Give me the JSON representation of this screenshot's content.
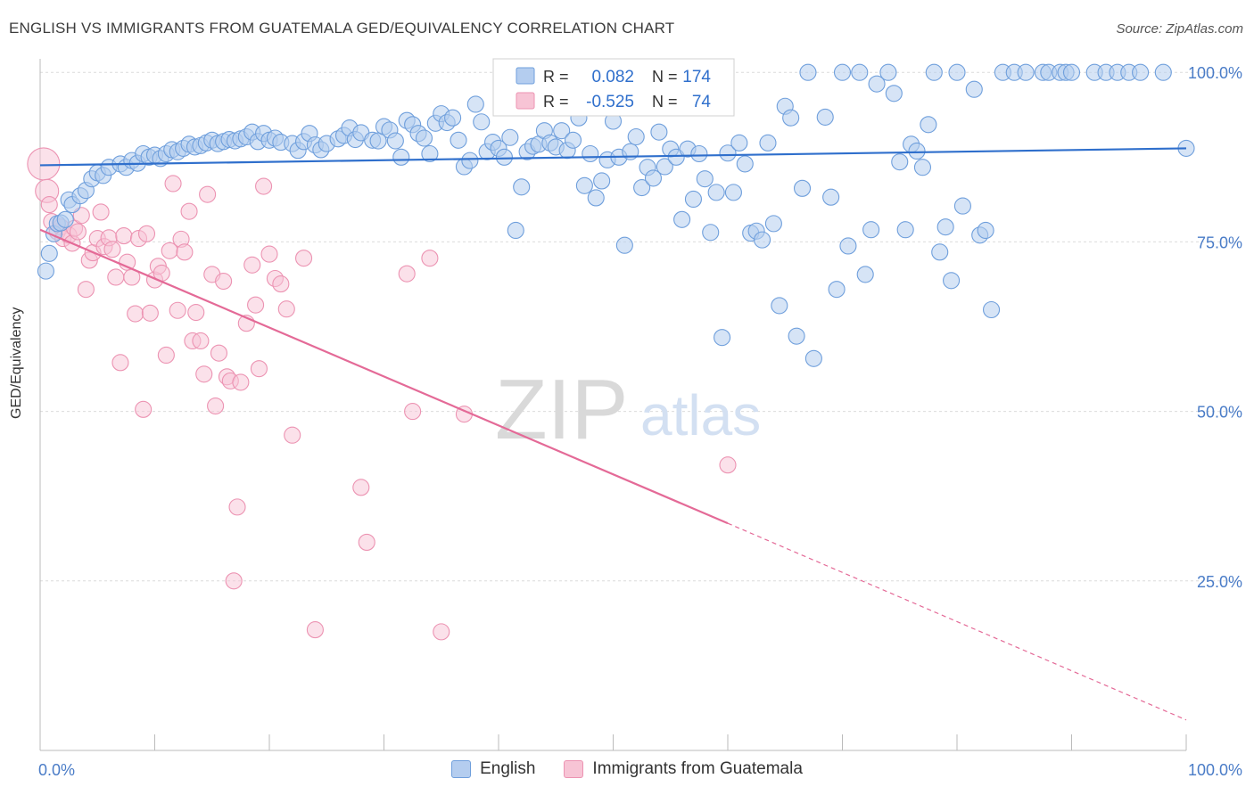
{
  "header": {
    "title": "ENGLISH VS IMMIGRANTS FROM GUATEMALA GED/EQUIVALENCY CORRELATION CHART",
    "source": "Source: ZipAtlas.com"
  },
  "colors": {
    "english": "#6f9fdc",
    "english_fill": "#b4cdef",
    "english_line": "#2f6fcc",
    "guatemala": "#ec93b2",
    "guatemala_fill": "#f7c4d5",
    "guatemala_line": "#e46a97",
    "axis_label": "#4a7cc7",
    "grid": "#dcdcdc"
  },
  "stats": {
    "english": {
      "r_label": "R =",
      "r_value": "0.082",
      "n_label": "N =",
      "n_value": "174"
    },
    "guatemala": {
      "r_label": "R =",
      "r_value": "-0.525",
      "n_label": "N =",
      "n_value": "74"
    }
  },
  "watermark": {
    "zip": "ZIP",
    "atlas": "atlas"
  },
  "chart_data": {
    "type": "scatter",
    "title": "ENGLISH VS IMMIGRANTS FROM GUATEMALA GED/EQUIVALENCY CORRELATION CHART",
    "xlabel": "",
    "ylabel": "GED/Equivalency",
    "xlim": [
      0,
      100
    ],
    "ylim": [
      0,
      102
    ],
    "x_tick_labels": [
      "0.0%",
      "100.0%"
    ],
    "y_ticks": [
      25,
      50,
      75,
      100
    ],
    "y_tick_labels": [
      "25.0%",
      "50.0%",
      "75.0%",
      "100.0%"
    ],
    "grid": true,
    "legend_position": "bottom",
    "series": [
      {
        "name": "English",
        "trend": {
          "x": [
            0,
            100
          ],
          "y": [
            86.3,
            88.8
          ]
        },
        "points": [
          [
            0.5,
            70.7
          ],
          [
            0.8,
            73.3
          ],
          [
            1.2,
            76.2
          ],
          [
            1.5,
            77.7
          ],
          [
            1.8,
            77.8
          ],
          [
            2.2,
            78.3
          ],
          [
            2.5,
            81.2
          ],
          [
            2.8,
            80.5
          ],
          [
            3.5,
            81.8
          ],
          [
            4.0,
            82.6
          ],
          [
            4.5,
            84.3
          ],
          [
            5.0,
            85.2
          ],
          [
            5.5,
            84.8
          ],
          [
            6.0,
            86.0
          ],
          [
            7.0,
            86.5
          ],
          [
            7.5,
            86.0
          ],
          [
            8.0,
            87.0
          ],
          [
            8.5,
            86.6
          ],
          [
            9.0,
            88.0
          ],
          [
            9.5,
            87.5
          ],
          [
            10.0,
            87.8
          ],
          [
            10.5,
            87.3
          ],
          [
            11.0,
            88.0
          ],
          [
            11.5,
            88.6
          ],
          [
            12.0,
            88.3
          ],
          [
            12.5,
            88.8
          ],
          [
            13.0,
            89.4
          ],
          [
            13.5,
            89.0
          ],
          [
            14.0,
            89.2
          ],
          [
            14.5,
            89.6
          ],
          [
            15.0,
            90.0
          ],
          [
            15.5,
            89.5
          ],
          [
            16.0,
            89.8
          ],
          [
            16.5,
            90.1
          ],
          [
            17.0,
            89.9
          ],
          [
            17.5,
            90.2
          ],
          [
            18.0,
            90.5
          ],
          [
            18.5,
            91.2
          ],
          [
            19.0,
            89.8
          ],
          [
            19.5,
            91.0
          ],
          [
            20.0,
            90.0
          ],
          [
            20.5,
            90.3
          ],
          [
            21.0,
            89.7
          ],
          [
            22.0,
            89.5
          ],
          [
            22.5,
            88.5
          ],
          [
            23.0,
            89.8
          ],
          [
            23.5,
            91.0
          ],
          [
            24.0,
            89.3
          ],
          [
            24.5,
            88.6
          ],
          [
            25.0,
            89.5
          ],
          [
            26.0,
            90.2
          ],
          [
            26.5,
            90.7
          ],
          [
            27.0,
            91.8
          ],
          [
            27.5,
            90.1
          ],
          [
            28.0,
            91.1
          ],
          [
            29.0,
            90.0
          ],
          [
            29.5,
            89.9
          ],
          [
            30.0,
            92.0
          ],
          [
            30.5,
            91.5
          ],
          [
            31.0,
            89.9
          ],
          [
            31.5,
            87.5
          ],
          [
            32.0,
            92.9
          ],
          [
            32.5,
            92.3
          ],
          [
            33.0,
            91.0
          ],
          [
            33.5,
            90.3
          ],
          [
            34.0,
            88.0
          ],
          [
            34.5,
            92.5
          ],
          [
            35.0,
            93.9
          ],
          [
            35.5,
            92.6
          ],
          [
            36.0,
            93.3
          ],
          [
            36.5,
            90.0
          ],
          [
            37.0,
            86.1
          ],
          [
            37.5,
            87.0
          ],
          [
            38.0,
            95.3
          ],
          [
            38.5,
            92.7
          ],
          [
            39.0,
            88.3
          ],
          [
            39.5,
            89.7
          ],
          [
            40.0,
            88.8
          ],
          [
            40.5,
            87.5
          ],
          [
            41.0,
            90.4
          ],
          [
            41.5,
            76.7
          ],
          [
            42.0,
            83.1
          ],
          [
            42.5,
            88.3
          ],
          [
            43.0,
            89.1
          ],
          [
            43.5,
            89.4
          ],
          [
            44.0,
            91.4
          ],
          [
            44.5,
            89.6
          ],
          [
            45.0,
            89.0
          ],
          [
            45.5,
            91.4
          ],
          [
            46.0,
            88.5
          ],
          [
            46.5,
            90.0
          ],
          [
            47.0,
            93.3
          ],
          [
            47.5,
            83.3
          ],
          [
            48.0,
            88.0
          ],
          [
            48.5,
            81.5
          ],
          [
            49.0,
            84.0
          ],
          [
            49.5,
            87.1
          ],
          [
            50.0,
            92.8
          ],
          [
            50.5,
            87.5
          ],
          [
            51.0,
            74.5
          ],
          [
            51.5,
            88.3
          ],
          [
            52.0,
            90.5
          ],
          [
            52.5,
            83.0
          ],
          [
            53.0,
            86.0
          ],
          [
            53.5,
            84.4
          ],
          [
            54.0,
            91.2
          ],
          [
            54.5,
            86.1
          ],
          [
            55.0,
            88.7
          ],
          [
            55.5,
            87.5
          ],
          [
            56.0,
            78.3
          ],
          [
            56.5,
            88.7
          ],
          [
            57.0,
            81.3
          ],
          [
            57.5,
            88.0
          ],
          [
            58.0,
            84.3
          ],
          [
            58.5,
            76.4
          ],
          [
            59.0,
            82.3
          ],
          [
            59.5,
            60.9
          ],
          [
            60.0,
            88.1
          ],
          [
            60.5,
            82.3
          ],
          [
            61.0,
            89.6
          ],
          [
            61.5,
            86.5
          ],
          [
            62.0,
            76.3
          ],
          [
            62.5,
            76.6
          ],
          [
            63.0,
            75.3
          ],
          [
            63.5,
            89.6
          ],
          [
            64.0,
            77.7
          ],
          [
            64.5,
            65.6
          ],
          [
            65.0,
            95.0
          ],
          [
            65.5,
            93.3
          ],
          [
            66.0,
            61.1
          ],
          [
            66.5,
            82.9
          ],
          [
            67.0,
            100.0
          ],
          [
            67.5,
            57.8
          ],
          [
            68.5,
            93.4
          ],
          [
            69.0,
            81.6
          ],
          [
            69.5,
            68.0
          ],
          [
            70.0,
            100.0
          ],
          [
            70.5,
            74.4
          ],
          [
            71.5,
            100.0
          ],
          [
            72.0,
            70.2
          ],
          [
            72.5,
            76.8
          ],
          [
            73.0,
            98.3
          ],
          [
            74.0,
            100.0
          ],
          [
            74.5,
            96.9
          ],
          [
            75.0,
            86.8
          ],
          [
            75.5,
            76.8
          ],
          [
            76.0,
            89.4
          ],
          [
            76.5,
            88.4
          ],
          [
            77.0,
            86.0
          ],
          [
            77.5,
            92.3
          ],
          [
            78.0,
            100.0
          ],
          [
            78.5,
            73.5
          ],
          [
            79.0,
            77.2
          ],
          [
            79.5,
            69.3
          ],
          [
            80.0,
            100.0
          ],
          [
            80.5,
            80.3
          ],
          [
            81.5,
            97.5
          ],
          [
            82.0,
            76.0
          ],
          [
            82.5,
            76.7
          ],
          [
            83.0,
            65.0
          ],
          [
            84.0,
            100.0
          ],
          [
            85.0,
            100.0
          ],
          [
            86.0,
            100.0
          ],
          [
            87.5,
            100.0
          ],
          [
            88.0,
            100.0
          ],
          [
            89.0,
            100.0
          ],
          [
            89.5,
            100.0
          ],
          [
            90.0,
            100.0
          ],
          [
            92.0,
            100.0
          ],
          [
            93.0,
            100.0
          ],
          [
            94.0,
            100.0
          ],
          [
            95.0,
            100.0
          ],
          [
            96.0,
            100.0
          ],
          [
            98.0,
            100.0
          ],
          [
            100.0,
            88.8
          ]
        ]
      },
      {
        "name": "Immigrants from Guatemala",
        "trend": {
          "x": [
            0,
            60
          ],
          "y": [
            76.8,
            33.5
          ]
        },
        "trend_dashed": {
          "x": [
            60,
            100
          ],
          "y": [
            33.5,
            4.5
          ]
        },
        "points": [
          [
            0.3,
            86.5
          ],
          [
            0.6,
            82.5
          ],
          [
            0.8,
            80.5
          ],
          [
            1.0,
            78.0
          ],
          [
            1.5,
            76.5
          ],
          [
            1.8,
            77.2
          ],
          [
            2.0,
            75.5
          ],
          [
            2.5,
            76.0
          ],
          [
            2.8,
            74.8
          ],
          [
            3.0,
            77.0
          ],
          [
            3.3,
            76.5
          ],
          [
            3.6,
            78.9
          ],
          [
            4.0,
            68.0
          ],
          [
            4.3,
            72.3
          ],
          [
            4.6,
            73.4
          ],
          [
            5.0,
            75.5
          ],
          [
            5.3,
            79.4
          ],
          [
            5.6,
            74.3
          ],
          [
            6.0,
            75.6
          ],
          [
            6.3,
            73.9
          ],
          [
            6.6,
            69.8
          ],
          [
            7.0,
            57.2
          ],
          [
            7.3,
            75.9
          ],
          [
            7.6,
            72.0
          ],
          [
            8.0,
            69.8
          ],
          [
            8.3,
            64.4
          ],
          [
            8.6,
            75.5
          ],
          [
            9.0,
            50.3
          ],
          [
            9.3,
            76.2
          ],
          [
            9.6,
            64.5
          ],
          [
            10.0,
            69.4
          ],
          [
            10.3,
            71.4
          ],
          [
            10.6,
            70.4
          ],
          [
            11.0,
            58.3
          ],
          [
            11.3,
            73.7
          ],
          [
            11.6,
            83.6
          ],
          [
            12.0,
            64.9
          ],
          [
            12.3,
            75.4
          ],
          [
            12.6,
            73.5
          ],
          [
            13.0,
            79.5
          ],
          [
            13.3,
            60.4
          ],
          [
            13.6,
            64.6
          ],
          [
            14.0,
            60.4
          ],
          [
            14.3,
            55.5
          ],
          [
            14.6,
            82.0
          ],
          [
            15.0,
            70.2
          ],
          [
            15.3,
            50.8
          ],
          [
            15.6,
            58.6
          ],
          [
            16.0,
            69.2
          ],
          [
            16.3,
            55.1
          ],
          [
            16.6,
            54.5
          ],
          [
            16.9,
            25.0
          ],
          [
            17.2,
            35.9
          ],
          [
            17.5,
            54.3
          ],
          [
            18.0,
            63.0
          ],
          [
            18.5,
            71.6
          ],
          [
            18.8,
            65.7
          ],
          [
            19.1,
            56.3
          ],
          [
            19.5,
            83.2
          ],
          [
            20.0,
            73.2
          ],
          [
            20.5,
            69.6
          ],
          [
            21.0,
            68.8
          ],
          [
            21.5,
            65.1
          ],
          [
            22.0,
            46.5
          ],
          [
            23.0,
            72.6
          ],
          [
            24.0,
            17.8
          ],
          [
            28.0,
            38.8
          ],
          [
            28.5,
            30.7
          ],
          [
            32.0,
            70.3
          ],
          [
            32.5,
            50.0
          ],
          [
            34.0,
            72.6
          ],
          [
            35.0,
            17.5
          ],
          [
            37.0,
            49.6
          ],
          [
            60.0,
            42.1
          ]
        ]
      }
    ]
  },
  "legend": {
    "english_label": "English",
    "guatemala_label": "Immigrants from Guatemala"
  }
}
